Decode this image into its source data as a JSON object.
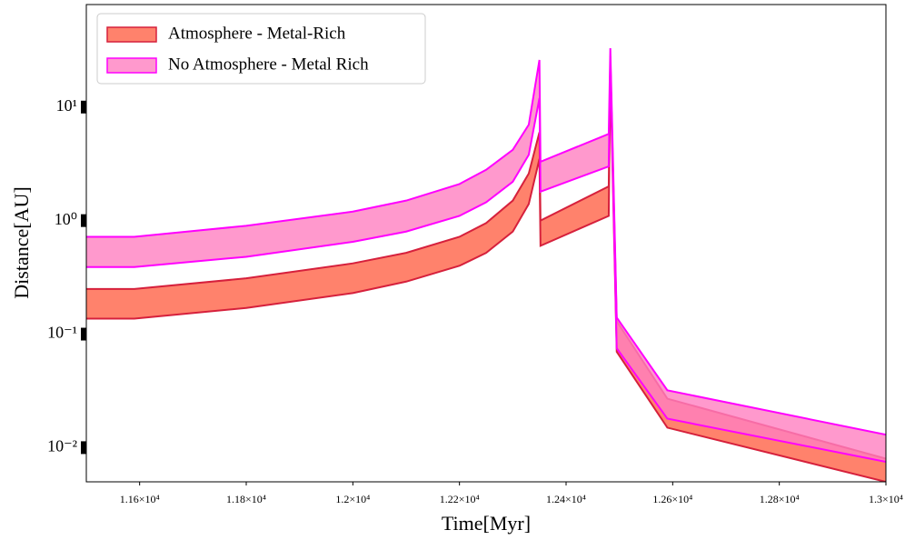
{
  "chart_data": {
    "type": "fill_between",
    "x_label": "Time[Myr]",
    "y_label": "Distance[AU]",
    "x": [
      11500,
      11590,
      11800,
      12000,
      12100,
      12200,
      12250,
      12300,
      12330,
      12350,
      12352,
      12480,
      12483,
      12495,
      12590,
      13000
    ],
    "series": [
      {
        "name": "Atmosphere - Metal-Rich",
        "color": "#ff6347",
        "edge_color": "#d6203c",
        "upper": [
          0.25,
          0.25,
          0.31,
          0.42,
          0.52,
          0.72,
          0.95,
          1.5,
          2.6,
          6,
          1.0,
          2.0,
          25,
          0.13,
          0.027,
          0.008
        ],
        "lower": [
          0.137,
          0.137,
          0.17,
          0.23,
          0.29,
          0.4,
          0.52,
          0.8,
          1.4,
          3.5,
          0.6,
          1.1,
          20,
          0.07,
          0.015,
          0.005
        ]
      },
      {
        "name": "No Atmosphere - Metal Rich",
        "color": "#ff7fc0",
        "edge_color": "#ff00ff",
        "upper": [
          0.72,
          0.72,
          0.9,
          1.2,
          1.5,
          2.1,
          2.8,
          4.2,
          7,
          26,
          3.3,
          5.8,
          33,
          0.14,
          0.032,
          0.013
        ],
        "lower": [
          0.39,
          0.39,
          0.48,
          0.65,
          0.8,
          1.1,
          1.45,
          2.2,
          3.8,
          12,
          1.8,
          3.0,
          28,
          0.075,
          0.018,
          0.0075
        ]
      }
    ],
    "xlim": [
      11500,
      13000
    ],
    "ylim": [
      0.005,
      80
    ],
    "y_scale": "log",
    "xticks": [
      {
        "value": 11600,
        "label": "1.16×10⁴"
      },
      {
        "value": 11800,
        "label": "1.18×10⁴"
      },
      {
        "value": 12000,
        "label": "1.2×10⁴"
      },
      {
        "value": 12200,
        "label": "1.22×10⁴"
      },
      {
        "value": 12400,
        "label": "1.24×10⁴"
      },
      {
        "value": 12600,
        "label": "1.26×10⁴"
      },
      {
        "value": 12800,
        "label": "1.28×10⁴"
      },
      {
        "value": 13000,
        "label": "1.3×10⁴"
      }
    ],
    "yticks": [
      {
        "value": 10,
        "label": "10¹"
      },
      {
        "value": 1,
        "label": "10⁰"
      },
      {
        "value": 0.1,
        "label": "10⁻¹"
      },
      {
        "value": 0.01,
        "label": "10⁻²"
      }
    ],
    "legend": "upper left"
  }
}
